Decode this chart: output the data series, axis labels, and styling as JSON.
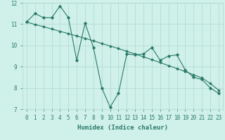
{
  "x": [
    0,
    1,
    2,
    3,
    4,
    5,
    6,
    7,
    8,
    9,
    10,
    11,
    12,
    13,
    14,
    15,
    16,
    17,
    18,
    19,
    20,
    21,
    22,
    23
  ],
  "y_jagged": [
    11.1,
    11.5,
    11.3,
    11.3,
    11.85,
    11.3,
    9.3,
    11.05,
    9.9,
    8.0,
    7.1,
    7.75,
    9.6,
    9.55,
    9.6,
    9.9,
    9.3,
    9.5,
    9.55,
    8.85,
    8.5,
    8.4,
    8.0,
    7.75
  ],
  "y_smooth": [
    11.1,
    10.98,
    10.88,
    10.77,
    10.66,
    10.55,
    10.44,
    10.33,
    10.21,
    10.09,
    9.97,
    9.85,
    9.72,
    9.59,
    9.46,
    9.33,
    9.19,
    9.05,
    8.91,
    8.77,
    8.62,
    8.47,
    8.21,
    7.9
  ],
  "line_color": "#2a7a68",
  "bg_color": "#d0f0ea",
  "grid_color": "#b0d8cc",
  "xlabel": "Humidex (Indice chaleur)",
  "ylim": [
    7.0,
    12.0
  ],
  "xlim": [
    -0.5,
    23.5
  ],
  "yticks": [
    7,
    8,
    9,
    10,
    11,
    12
  ],
  "xticks": [
    0,
    1,
    2,
    3,
    4,
    5,
    6,
    7,
    8,
    9,
    10,
    11,
    12,
    13,
    14,
    15,
    16,
    17,
    18,
    19,
    20,
    21,
    22,
    23
  ],
  "label_fontsize": 6.5,
  "tick_fontsize": 5.5
}
